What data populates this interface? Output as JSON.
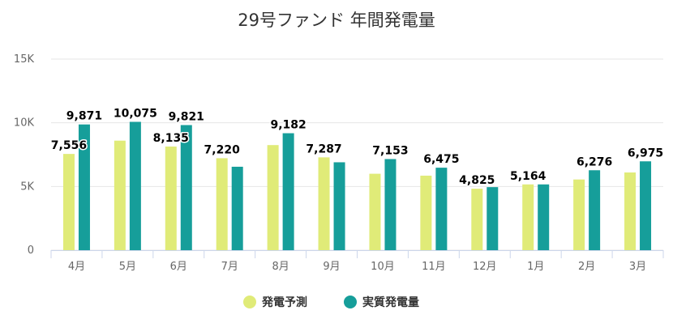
{
  "chart_data": {
    "type": "bar",
    "title": "29号ファンド 年間発電量",
    "categories": [
      "4月",
      "5月",
      "6月",
      "7月",
      "8月",
      "9月",
      "10月",
      "11月",
      "12月",
      "1月",
      "2月",
      "3月"
    ],
    "series": [
      {
        "name": "発電予測",
        "color": "#e0eb78",
        "values": [
          7556,
          8600,
          8135,
          7220,
          8250,
          7287,
          6000,
          5850,
          4825,
          5164,
          5550,
          6100
        ],
        "labels": [
          "7,556",
          "",
          "8,135",
          "7,220",
          "",
          "7,287",
          "",
          "",
          "4,825",
          "5,164",
          "",
          ""
        ]
      },
      {
        "name": "実質発電量",
        "color": "#169e9a",
        "values": [
          9871,
          10075,
          9821,
          6550,
          9182,
          6900,
          7153,
          6475,
          4950,
          5164,
          6276,
          6975
        ],
        "labels": [
          "9,871",
          "10,075",
          "9,821",
          "",
          "9,182",
          "",
          "7,153",
          "6,475",
          "",
          "",
          "6,276",
          "6,975"
        ]
      }
    ],
    "ylim": [
      0,
      15000
    ],
    "yticks": [
      0,
      5000,
      10000,
      15000
    ],
    "ytick_labels": [
      "0",
      "5K",
      "10K",
      "15K"
    ],
    "xlabel": "",
    "ylabel": "",
    "grid": true,
    "legend": "bottom-center"
  }
}
